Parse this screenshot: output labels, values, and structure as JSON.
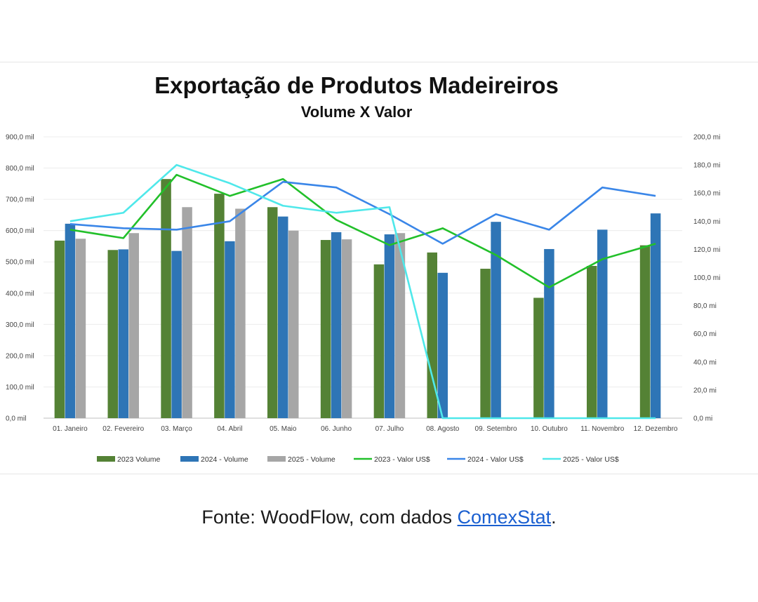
{
  "chart_data": {
    "type": "bar",
    "title": "Exportação de Produtos Madeireiros",
    "subtitle": "Volume X Valor",
    "categories": [
      "01. Janeiro",
      "02. Fevereiro",
      "03. Março",
      "04. Abril",
      "05. Maio",
      "06. Junho",
      "07. Julho",
      "08. Agosto",
      "09. Setembro",
      "10. Outubro",
      "11. Novembro",
      "12. Dezembro"
    ],
    "y_left": {
      "range": [
        0,
        900000
      ],
      "tick_values": [
        0,
        100000,
        200000,
        300000,
        400000,
        500000,
        600000,
        700000,
        800000,
        900000
      ],
      "tick_labels": [
        "0,0 mil",
        "100,0 mil",
        "200,0 mil",
        "300,0 mil",
        "400,0 mil",
        "500,0 mil",
        "600,0 mil",
        "700,0 mil",
        "800,0 mil",
        "900,0 mil"
      ]
    },
    "y_right": {
      "range": [
        0,
        200000000
      ],
      "tick_values": [
        0,
        20000000,
        40000000,
        60000000,
        80000000,
        100000000,
        120000000,
        140000000,
        160000000,
        180000000,
        200000000
      ],
      "tick_labels": [
        "0,0 mi",
        "20,0 mi",
        "40,0 mi",
        "60,0 mi",
        "80,0 mi",
        "100,0 mi",
        "120,0 mi",
        "140,0 mi",
        "160,0 mi",
        "180,0 mi",
        "200,0 mi"
      ]
    },
    "grid": true,
    "legend_position": "bottom",
    "bar_series": [
      {
        "name": "2023 Volume",
        "color": "#548235",
        "values": [
          568000,
          538000,
          765000,
          718000,
          675000,
          570000,
          492000,
          530000,
          478000,
          385000,
          487000,
          553000
        ]
      },
      {
        "name": "2024 - Volume",
        "color": "#2e75b6",
        "values": [
          622000,
          540000,
          535000,
          566000,
          645000,
          595000,
          588000,
          465000,
          628000,
          541000,
          603000,
          655000
        ]
      },
      {
        "name": "2025 - Volume",
        "color": "#a6a6a6",
        "values": [
          574000,
          592000,
          675000,
          670000,
          600000,
          572000,
          592000,
          null,
          null,
          null,
          null,
          null
        ]
      }
    ],
    "line_series": [
      {
        "name": "2023 - Valor US$",
        "color": "#22c02a",
        "axis": "right",
        "values": [
          134000000,
          128000000,
          173000000,
          158000000,
          170000000,
          141000000,
          123000000,
          135000000,
          116000000,
          93000000,
          113000000,
          124000000
        ]
      },
      {
        "name": "2024 - Valor US$",
        "color": "#3a86e8",
        "axis": "right",
        "values": [
          138000000,
          135000000,
          134000000,
          140000000,
          168000000,
          164000000,
          145000000,
          124000000,
          145000000,
          134000000,
          164000000,
          158000000
        ]
      },
      {
        "name": "2025 - Valor US$",
        "color": "#4fe8ea",
        "axis": "right",
        "values": [
          140000000,
          146000000,
          180000000,
          167000000,
          151000000,
          146000000,
          150000000,
          0,
          0,
          0,
          0,
          0
        ]
      }
    ]
  },
  "caption": {
    "prefix": "Fonte: WoodFlow, com dados ",
    "link_text": "ComexStat",
    "suffix": "."
  }
}
